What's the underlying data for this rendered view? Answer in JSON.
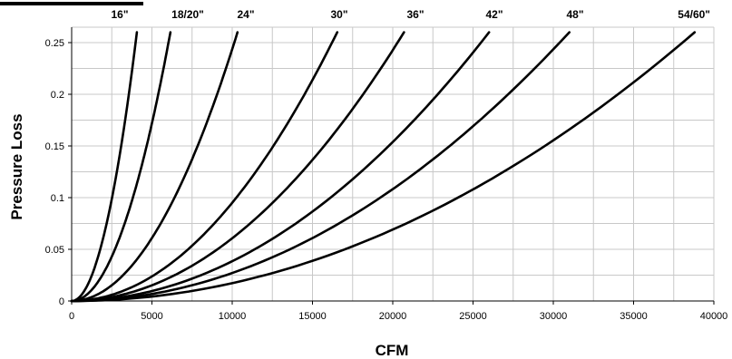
{
  "chart_data": {
    "type": "line",
    "title": "",
    "xlabel": "CFM",
    "ylabel": "Pressure Loss",
    "xlim": [
      0,
      40000
    ],
    "ylim": [
      0,
      0.25
    ],
    "x_ticks": [
      0,
      5000,
      10000,
      15000,
      20000,
      25000,
      30000,
      35000,
      40000
    ],
    "x_tick_labels": [
      "0",
      "5000",
      "10000",
      "15000",
      "20000",
      "25000",
      "30000",
      "35000",
      "40000"
    ],
    "y_ticks": [
      0,
      0.05,
      0.1,
      0.15,
      0.2,
      0.25
    ],
    "y_tick_labels": [
      "0",
      "0.05",
      "0.1",
      "0.15",
      "0.2",
      "0.25"
    ],
    "grid": true,
    "legend": "none",
    "series": [
      {
        "name": "16\"",
        "end": {
          "x": 4060,
          "y": 0.26
        }
      },
      {
        "name": "18/20\"",
        "end": {
          "x": 6150,
          "y": 0.26
        }
      },
      {
        "name": "24\"",
        "end": {
          "x": 10330,
          "y": 0.26
        }
      },
      {
        "name": "30\"",
        "end": {
          "x": 16540,
          "y": 0.26
        }
      },
      {
        "name": "36\"",
        "end": {
          "x": 20700,
          "y": 0.26
        }
      },
      {
        "name": "42\"",
        "end": {
          "x": 26000,
          "y": 0.26
        }
      },
      {
        "name": "48\"",
        "end": {
          "x": 31000,
          "y": 0.26
        }
      },
      {
        "name": "54/60\"",
        "end": {
          "x": 38800,
          "y": 0.26
        }
      }
    ]
  }
}
